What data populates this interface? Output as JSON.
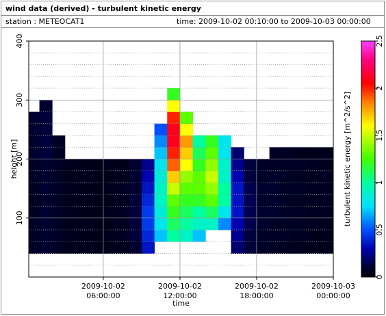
{
  "header": {
    "title": "wind data (derived) - turbulent kinetic energy",
    "station": "station : METEOCAT1",
    "time": "time: 2009-10-02 00:10:00 to 2009-10-03 00:00:00"
  },
  "chart_data": {
    "type": "heatmap",
    "xlabel": "time",
    "ylabel": "height [m]",
    "x_edges": [
      0.1667,
      1,
      2,
      3,
      4,
      5,
      6,
      7,
      8,
      9,
      10,
      11,
      12,
      13,
      14,
      15,
      16,
      17,
      18,
      19,
      20,
      21,
      22,
      23,
      24
    ],
    "y_edges": [
      40,
      60,
      80,
      100,
      120,
      140,
      160,
      180,
      200,
      220,
      240,
      260,
      280,
      300,
      320
    ],
    "z": [
      [
        0.08,
        0.08,
        0.08,
        0.07,
        0.07,
        0.07,
        0.08,
        0.08,
        0.09,
        0.09,
        0.1,
        0.1,
        null,
        null
      ],
      [
        0.1,
        0.1,
        0.1,
        0.1,
        0.1,
        0.1,
        0.1,
        0.1,
        0.12,
        0.12,
        0.12,
        0.12,
        0.1,
        null
      ],
      [
        0.08,
        0.08,
        0.08,
        0.08,
        0.08,
        0.08,
        0.08,
        0.08,
        0.08,
        0.08,
        null,
        null,
        null,
        null
      ],
      [
        0.06,
        0.06,
        0.06,
        0.06,
        0.06,
        0.06,
        0.06,
        0.06,
        null,
        null,
        null,
        null,
        null,
        null
      ],
      [
        0.06,
        0.06,
        0.06,
        0.06,
        0.06,
        0.06,
        0.06,
        0.06,
        null,
        null,
        null,
        null,
        null,
        null
      ],
      [
        0.05,
        0.05,
        0.05,
        0.05,
        0.05,
        0.05,
        0.05,
        0.05,
        null,
        null,
        null,
        null,
        null,
        null
      ],
      [
        0.06,
        0.06,
        0.06,
        0.06,
        0.06,
        0.06,
        0.06,
        0.06,
        null,
        null,
        null,
        null,
        null,
        null
      ],
      [
        0.06,
        0.07,
        0.07,
        0.07,
        0.07,
        0.07,
        0.06,
        0.06,
        null,
        null,
        null,
        null,
        null,
        null
      ],
      [
        0.1,
        0.12,
        0.12,
        0.12,
        0.12,
        0.1,
        0.1,
        0.1,
        null,
        null,
        null,
        null,
        null,
        null
      ],
      [
        0.35,
        0.4,
        0.45,
        0.45,
        0.4,
        0.35,
        0.3,
        0.25,
        null,
        null,
        null,
        null,
        null,
        null
      ],
      [
        null,
        0.7,
        0.8,
        0.85,
        0.9,
        0.9,
        0.85,
        0.8,
        0.7,
        0.6,
        0.5,
        null,
        null,
        null
      ],
      [
        null,
        1.0,
        1.1,
        1.2,
        1.3,
        1.5,
        1.7,
        1.9,
        2.0,
        2.1,
        2.1,
        2.0,
        1.6,
        1.2
      ],
      [
        null,
        0.9,
        1.0,
        1.1,
        1.2,
        1.3,
        1.4,
        1.6,
        1.7,
        1.8,
        1.6,
        1.3,
        null,
        null
      ],
      [
        null,
        0.7,
        0.9,
        1.0,
        1.2,
        1.3,
        1.3,
        1.2,
        1.1,
        1.0,
        null,
        null,
        null,
        null
      ],
      [
        null,
        null,
        0.9,
        1.1,
        1.3,
        1.4,
        1.5,
        1.4,
        1.3,
        1.2,
        null,
        null,
        null,
        null
      ],
      [
        null,
        null,
        0.6,
        0.8,
        1.0,
        1.0,
        0.9,
        0.9,
        0.8,
        0.8,
        null,
        null,
        null,
        null
      ],
      [
        0.2,
        0.25,
        0.3,
        0.35,
        0.35,
        0.35,
        0.3,
        0.25,
        0.2,
        null,
        null,
        null,
        null,
        null
      ],
      [
        0.12,
        0.12,
        0.15,
        0.15,
        0.15,
        0.15,
        0.12,
        0.12,
        null,
        null,
        null,
        null,
        null,
        null
      ],
      [
        0.08,
        0.08,
        0.09,
        0.09,
        0.09,
        0.09,
        0.08,
        0.08,
        null,
        null,
        null,
        null,
        null,
        null
      ],
      [
        0.07,
        0.08,
        0.08,
        0.09,
        0.09,
        0.09,
        0.09,
        0.08,
        0.08,
        null,
        null,
        null,
        null,
        null
      ],
      [
        0.07,
        0.07,
        0.08,
        0.08,
        0.08,
        0.08,
        0.08,
        0.08,
        0.07,
        null,
        null,
        null,
        null,
        null
      ],
      [
        0.06,
        0.07,
        0.07,
        0.07,
        0.07,
        0.07,
        0.07,
        0.07,
        0.06,
        null,
        null,
        null,
        null,
        null
      ],
      [
        0.06,
        0.06,
        0.07,
        0.07,
        0.07,
        0.07,
        0.07,
        0.07,
        0.06,
        null,
        null,
        null,
        null,
        null
      ],
      [
        0.06,
        0.06,
        0.06,
        0.07,
        0.07,
        0.07,
        0.07,
        0.06,
        0.06,
        null,
        null,
        null,
        null,
        null
      ]
    ],
    "xlim": [
      0.1667,
      24
    ],
    "ylim": [
      0,
      400
    ],
    "yticks": [
      100,
      200,
      300,
      400
    ],
    "yminorticks": [
      20,
      40,
      60,
      80,
      120,
      140,
      160,
      180,
      220,
      240,
      260,
      280,
      320,
      340,
      360,
      380
    ],
    "xticks": [
      {
        "value": 6,
        "label": [
          "2009-10-02",
          "06:00:00"
        ]
      },
      {
        "value": 12,
        "label": [
          "2009-10-02",
          "12:00:00"
        ]
      },
      {
        "value": 18,
        "label": [
          "2009-10-02",
          "18:00:00"
        ]
      },
      {
        "value": 24,
        "label": [
          "2009-10-03",
          "00:00:00"
        ]
      }
    ],
    "grid": true,
    "colorbar": {
      "label": "turbulent kinetic energy [m^2/s^2]",
      "lim": [
        0,
        2.5
      ],
      "ticks": [
        0,
        0.5,
        1,
        1.5,
        2,
        2.5
      ],
      "colormap": [
        [
          0,
          "#000000"
        ],
        [
          0.12,
          "#00003a"
        ],
        [
          0.3,
          "#0000b0"
        ],
        [
          0.5,
          "#0050ff"
        ],
        [
          0.75,
          "#00e0ff"
        ],
        [
          1.0,
          "#00ffa0"
        ],
        [
          1.25,
          "#40ff00"
        ],
        [
          1.6,
          "#ffff00"
        ],
        [
          1.85,
          "#ff8000"
        ],
        [
          2.05,
          "#ff0000"
        ],
        [
          2.3,
          "#ff0080"
        ],
        [
          2.5,
          "#ff40ff"
        ]
      ]
    }
  }
}
